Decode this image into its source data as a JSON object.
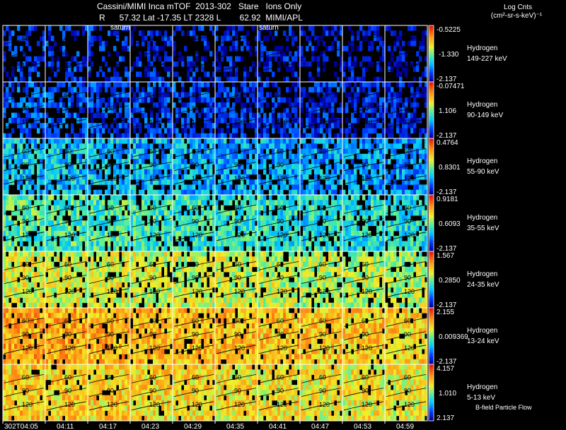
{
  "header": {
    "title": "Cassini/MIMI Inca mTOF  2013-302   Stare   Ions Only",
    "subtitle": "R      57.32 Lat -17.35 LT 2328 L        62.92  MIMI/APL"
  },
  "colorbar": {
    "title": "Log Cnts",
    "units": "(cm²-sr-s-keV)⁻¹"
  },
  "annotations": {
    "saturn_labels": [
      "saturn",
      "saturn"
    ],
    "bfield": "B-field Particle Flow",
    "angle_labels": [
      "60",
      "90",
      "120"
    ]
  },
  "colors": {
    "background": "#000000",
    "grid": "#ffffff",
    "contour": "#000000"
  },
  "chart_data": {
    "type": "heatmap",
    "xlabel": "",
    "ylabel": "",
    "x_tick_labels": [
      "302T04:05",
      "04:11",
      "04:17",
      "04:23",
      "04:29",
      "04:35",
      "04:41",
      "04:47",
      "04:53",
      "04:59"
    ],
    "colormap": "rainbow (blue-cyan-green-yellow-red)",
    "rows": [
      {
        "species": "Hydrogen",
        "energy": "149-227 keV",
        "cmax": "-0.5225",
        "cmid": "-1.330",
        "cmin": "-2.137",
        "level": 0.12,
        "fill": 0.4
      },
      {
        "species": "Hydrogen",
        "energy": "90-149 keV",
        "cmax": "-0.07471",
        "cmid": "1.106",
        "cmin": "-2.137",
        "level": 0.16,
        "fill": 0.62
      },
      {
        "species": "Hydrogen",
        "energy": "55-90 keV",
        "cmax": "0.4764",
        "cmid": "0.8301",
        "cmin": "-2.137",
        "level": 0.33,
        "fill": 0.78
      },
      {
        "species": "Hydrogen",
        "energy": "35-55 keV",
        "cmax": "0.9181",
        "cmid": "0.6093",
        "cmin": "-2.137",
        "level": 0.45,
        "fill": 0.82
      },
      {
        "species": "Hydrogen",
        "energy": "24-35 keV",
        "cmax": "1.567",
        "cmid": "0.2850",
        "cmin": "-2.137",
        "level": 0.62,
        "fill": 0.85
      },
      {
        "species": "Hydrogen",
        "energy": "13-24 keV",
        "cmax": "2.155",
        "cmid": "0.009369",
        "cmin": "-2.137",
        "level": 0.76,
        "fill": 0.88
      },
      {
        "species": "Hydrogen",
        "energy": "5-13 keV",
        "cmax": "4.157",
        "cmid": "1.010",
        "cmin": "2.137",
        "level": 0.7,
        "fill": 0.92
      }
    ]
  }
}
